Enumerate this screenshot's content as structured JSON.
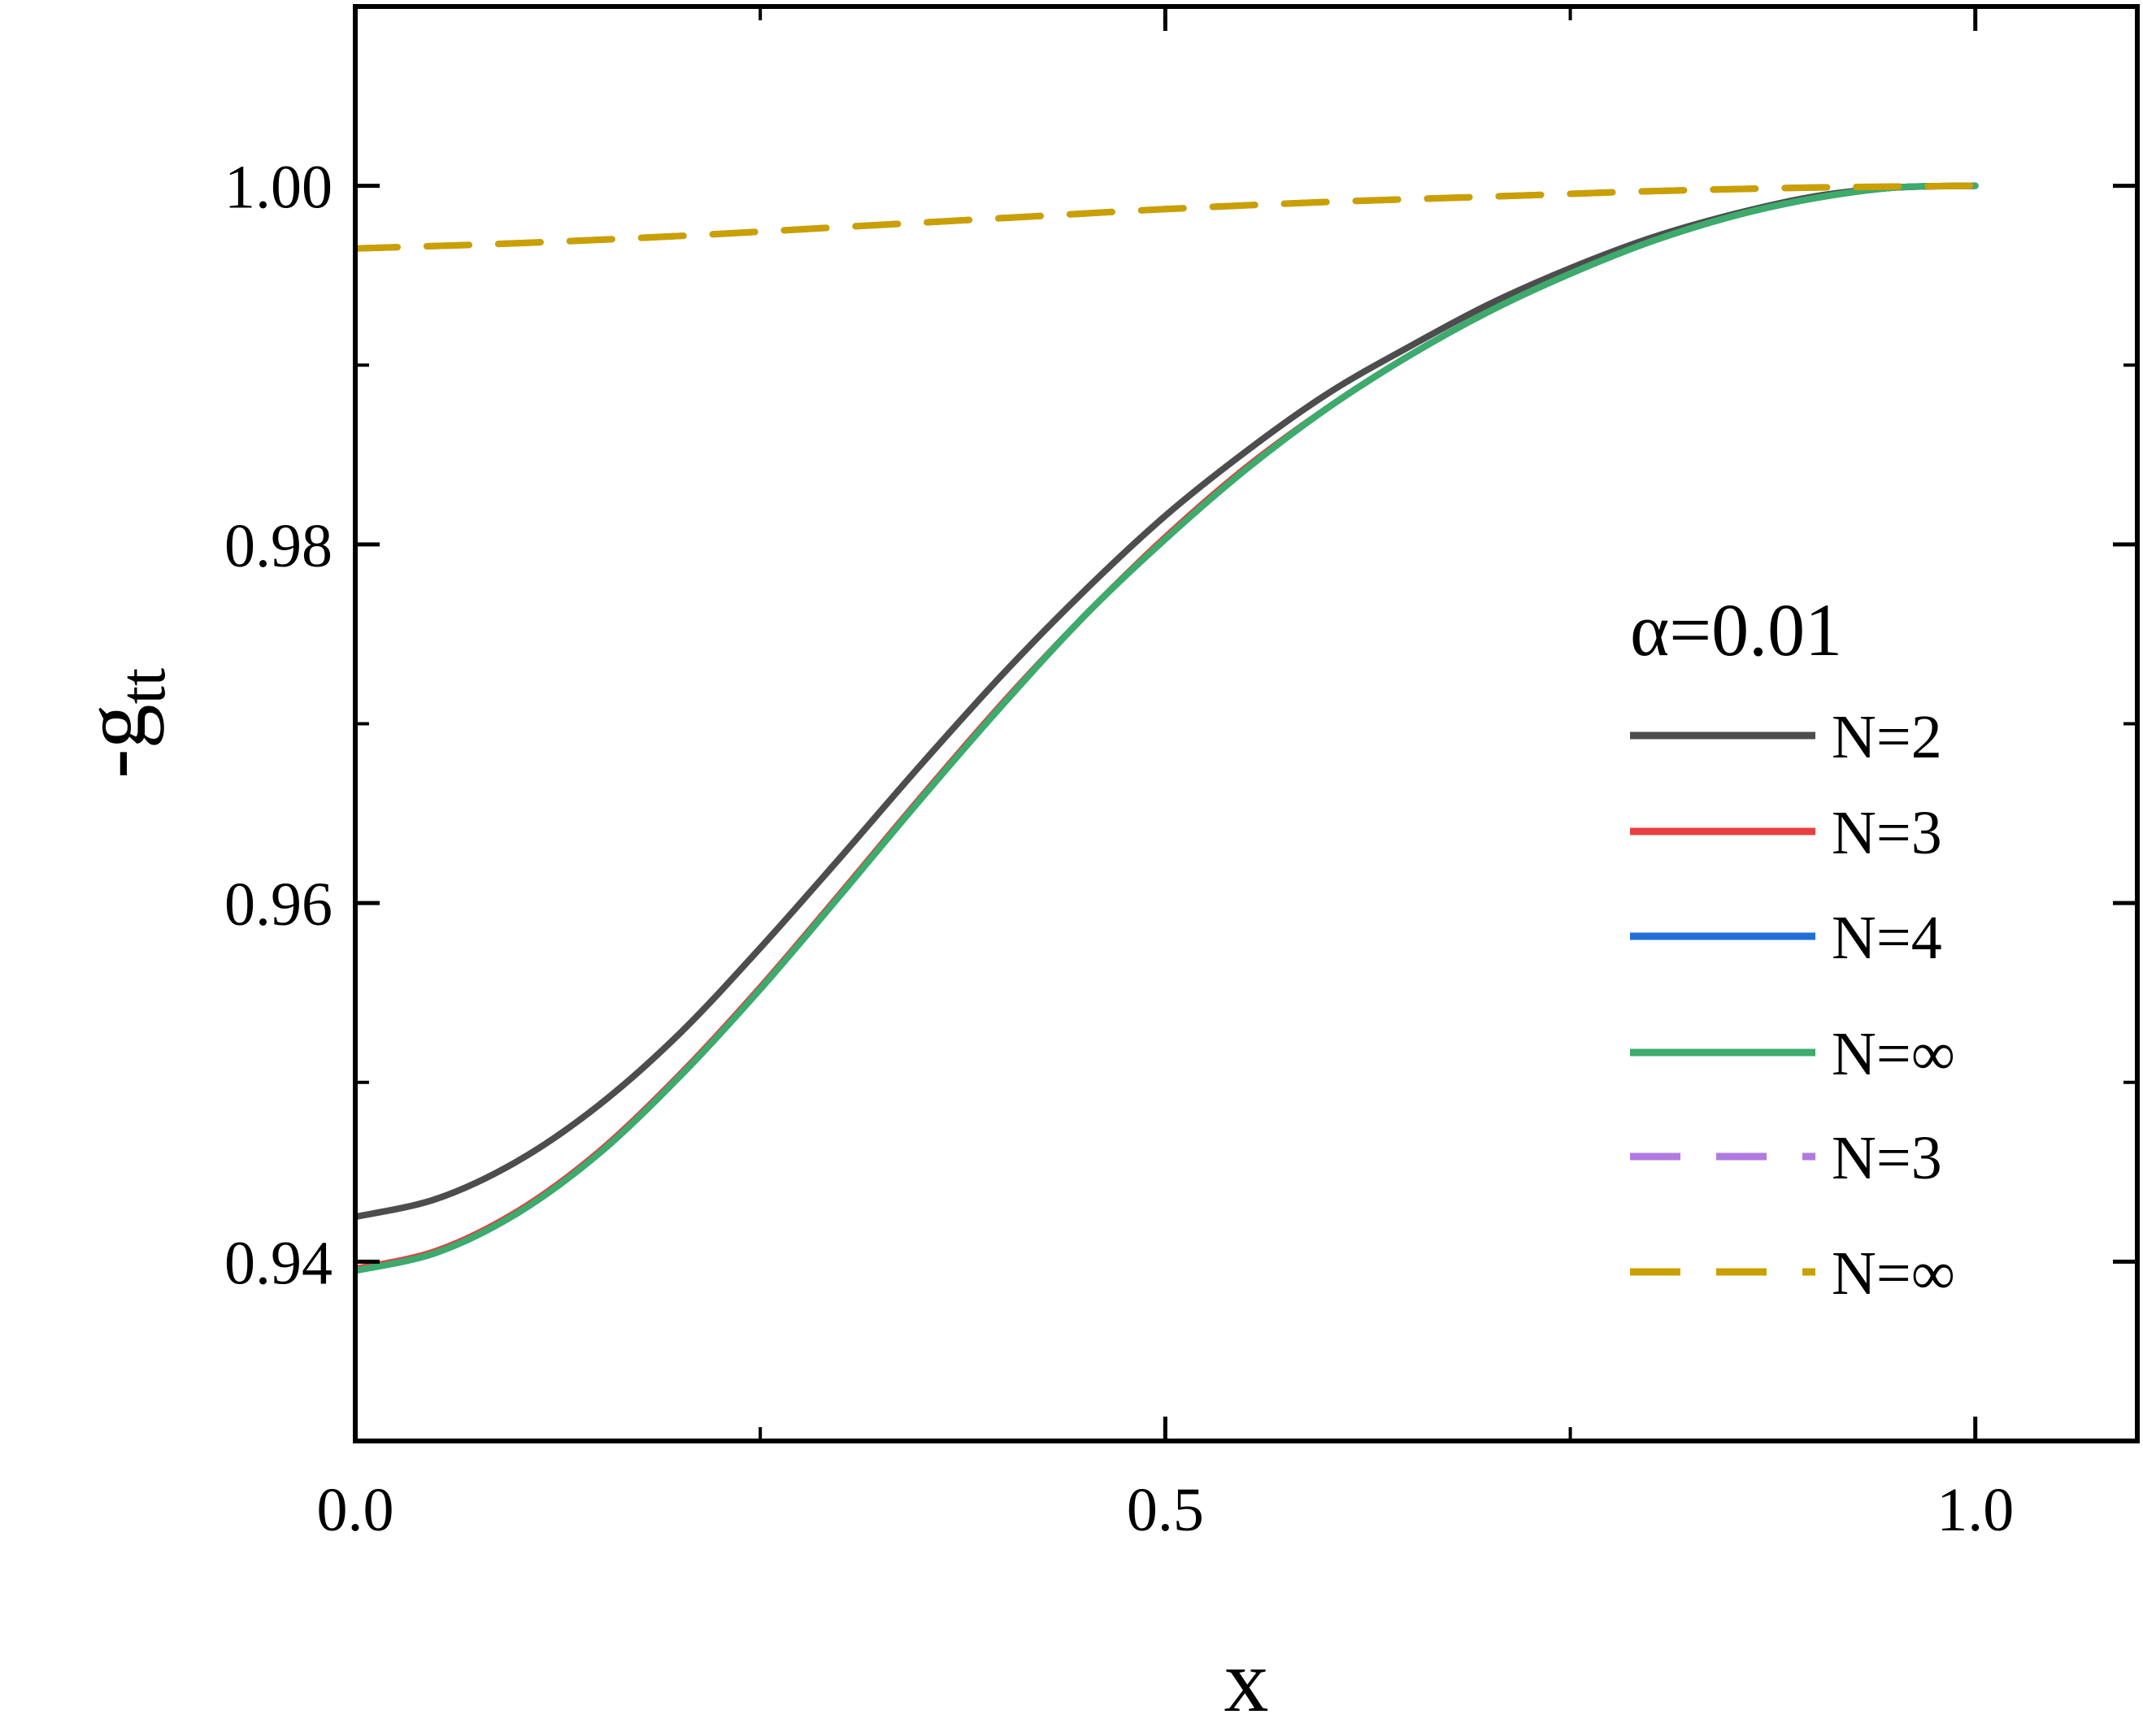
{
  "chart_data": {
    "type": "line",
    "xlabel": "x",
    "ylabel_main": "-g",
    "ylabel_sub": "tt",
    "xlim": [
      0.0,
      1.1
    ],
    "ylim": [
      0.93,
      1.01
    ],
    "x_ticks": [
      0.0,
      0.5,
      1.0
    ],
    "x_tick_labels": [
      "0.0",
      "0.5",
      "1.0"
    ],
    "x_minor_ticks": [
      0.25,
      0.75
    ],
    "y_ticks": [
      0.94,
      0.96,
      0.98,
      1.0
    ],
    "y_tick_labels": [
      "0.94",
      "0.96",
      "0.98",
      "1.00"
    ],
    "y_minor_ticks": [
      0.95,
      0.97,
      0.99
    ],
    "grid": false,
    "legend_title": "α=0.01",
    "legend_placement": "right",
    "series": [
      {
        "name": "N=2",
        "color": "#4d4d4d",
        "dash": "solid",
        "x": [
          0,
          0.05,
          0.1,
          0.15,
          0.2,
          0.25,
          0.3,
          0.35,
          0.4,
          0.45,
          0.5,
          0.55,
          0.6,
          0.65,
          0.7,
          0.75,
          0.8,
          0.85,
          0.9,
          0.95,
          1.0
        ],
        "y": [
          0.9425,
          0.9435,
          0.9456,
          0.9487,
          0.9527,
          0.9575,
          0.9626,
          0.9678,
          0.9728,
          0.9774,
          0.9816,
          0.9852,
          0.9884,
          0.991,
          0.9934,
          0.9954,
          0.9971,
          0.9984,
          0.9994,
          0.9999,
          1.0
        ]
      },
      {
        "name": "N=3",
        "color": "#e84040",
        "dash": "solid",
        "x": [
          0,
          0.05,
          0.1,
          0.15,
          0.2,
          0.25,
          0.3,
          0.35,
          0.4,
          0.45,
          0.5,
          0.55,
          0.6,
          0.65,
          0.7,
          0.75,
          0.8,
          0.85,
          0.9,
          0.95,
          1.0
        ],
        "y": [
          0.9396,
          0.9406,
          0.9428,
          0.9461,
          0.9504,
          0.9553,
          0.9606,
          0.966,
          0.9712,
          0.976,
          0.9804,
          0.9843,
          0.9876,
          0.9905,
          0.993,
          0.9951,
          0.9969,
          0.9983,
          0.9993,
          0.9999,
          1.0
        ]
      },
      {
        "name": "N=4",
        "color": "#1f6fd6",
        "dash": "solid",
        "x": [
          0,
          0.05,
          0.1,
          0.15,
          0.2,
          0.25,
          0.3,
          0.35,
          0.4,
          0.45,
          0.5,
          0.55,
          0.6,
          0.65,
          0.7,
          0.75,
          0.8,
          0.85,
          0.9,
          0.95,
          1.0
        ],
        "y": [
          0.9395,
          0.9405,
          0.9427,
          0.946,
          0.9503,
          0.9552,
          0.9605,
          0.9659,
          0.9711,
          0.976,
          0.9803,
          0.9842,
          0.9876,
          0.9905,
          0.993,
          0.9951,
          0.9969,
          0.9983,
          0.9993,
          0.9999,
          1.0
        ]
      },
      {
        "name": "N=∞",
        "color": "#3cab6b",
        "dash": "solid",
        "x": [
          0,
          0.05,
          0.1,
          0.15,
          0.2,
          0.25,
          0.3,
          0.35,
          0.4,
          0.45,
          0.5,
          0.55,
          0.6,
          0.65,
          0.7,
          0.75,
          0.8,
          0.85,
          0.9,
          0.95,
          1.0
        ],
        "y": [
          0.9395,
          0.9405,
          0.9427,
          0.946,
          0.9503,
          0.9552,
          0.9605,
          0.9659,
          0.9711,
          0.976,
          0.9803,
          0.9842,
          0.9876,
          0.9905,
          0.993,
          0.9951,
          0.9969,
          0.9983,
          0.9993,
          0.9999,
          1.0
        ]
      },
      {
        "name": "N=3",
        "color": "#b07be0",
        "dash": "dashed",
        "x": [
          0,
          0.1,
          0.2,
          0.3,
          0.4,
          0.5,
          0.6,
          0.7,
          0.8,
          0.9,
          1.0
        ],
        "y": [
          0.9965,
          0.9968,
          0.9972,
          0.9977,
          0.9982,
          0.9987,
          0.9991,
          0.9994,
          0.9997,
          0.9999,
          1.0
        ]
      },
      {
        "name": "N=∞",
        "color": "#c9a000",
        "dash": "dashed",
        "x": [
          0,
          0.1,
          0.2,
          0.3,
          0.4,
          0.5,
          0.6,
          0.7,
          0.8,
          0.9,
          1.0
        ],
        "y": [
          0.9965,
          0.9968,
          0.9972,
          0.9977,
          0.9982,
          0.9987,
          0.9991,
          0.9994,
          0.9997,
          0.9999,
          1.0
        ]
      }
    ]
  }
}
